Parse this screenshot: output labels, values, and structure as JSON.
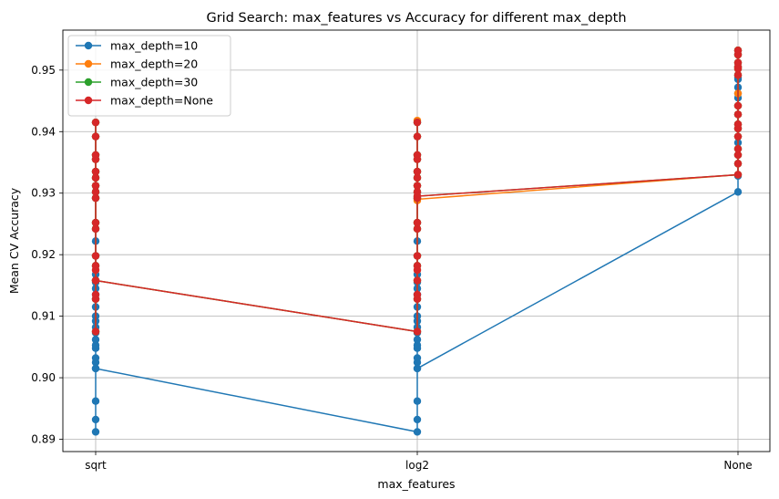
{
  "chart_data": {
    "type": "line",
    "title": "Grid Search: max_features vs Accuracy for different max_depth",
    "xlabel": "max_features",
    "ylabel": "Mean CV Accuracy",
    "categories": [
      "sqrt",
      "log2",
      "None"
    ],
    "ylim": [
      0.888,
      0.9565
    ],
    "yticks": [
      0.89,
      0.9,
      0.91,
      0.92,
      0.93,
      0.94,
      0.95
    ],
    "ytick_labels": [
      "0.89",
      "0.90",
      "0.91",
      "0.92",
      "0.93",
      "0.94",
      "0.95"
    ],
    "grid": true,
    "legend_position": "top-left",
    "series": [
      {
        "name": "max_depth=10",
        "color": "#1f77b4",
        "points": [
          {
            "cat": "sqrt",
            "values": [
              0.8912,
              0.8932,
              0.8962,
              0.9015,
              0.9025,
              0.9032,
              0.9048,
              0.9053,
              0.9062,
              0.9073,
              0.9082,
              0.9092,
              0.91,
              0.9115,
              0.9128,
              0.9135,
              0.9145,
              0.9155,
              0.9168,
              0.9182,
              0.9198,
              0.9222,
              0.9242,
              0.9252,
              0.9292,
              0.9302,
              0.9312,
              0.9325,
              0.9335,
              0.9355,
              0.9362,
              0.9392,
              0.9415,
              0.9015
            ]
          },
          {
            "cat": "log2",
            "values": [
              0.8912,
              0.8932,
              0.8962,
              0.9015,
              0.9025,
              0.9032,
              0.9048,
              0.9053,
              0.9062,
              0.9073,
              0.9082,
              0.9092,
              0.91,
              0.9115,
              0.9128,
              0.9135,
              0.9145,
              0.9155,
              0.9168,
              0.9182,
              0.9198,
              0.9222,
              0.9242,
              0.9252,
              0.9292,
              0.9302,
              0.9312,
              0.9325,
              0.9335,
              0.9355,
              0.9362,
              0.9392,
              0.9415,
              0.9135,
              0.9015
            ]
          },
          {
            "cat": "None",
            "values": [
              0.9302,
              0.9328,
              0.9348,
              0.9362,
              0.9372,
              0.9382,
              0.9392,
              0.9405,
              0.9412,
              0.9428,
              0.9442,
              0.9455,
              0.9462,
              0.9472,
              0.9485,
              0.9492,
              0.9505,
              0.9512,
              0.9525,
              0.9532,
              0.9488
            ]
          }
        ]
      },
      {
        "name": "max_depth=20",
        "color": "#ff7f0e",
        "points": [
          {
            "cat": "sqrt",
            "values": [
              0.9075,
              0.9128,
              0.9158,
              0.9175,
              0.9182,
              0.9198,
              0.9242,
              0.9252,
              0.9292,
              0.9302,
              0.9312,
              0.9325,
              0.9335,
              0.9355,
              0.9362,
              0.9392,
              0.9415,
              0.9158
            ]
          },
          {
            "cat": "log2",
            "values": [
              0.9075,
              0.9128,
              0.9158,
              0.9175,
              0.9182,
              0.9198,
              0.9242,
              0.9252,
              0.9288,
              0.9302,
              0.9312,
              0.9325,
              0.9335,
              0.9355,
              0.9362,
              0.9392,
              0.9418,
              0.929
            ]
          },
          {
            "cat": "None",
            "values": [
              0.933,
              0.9348,
              0.9362,
              0.9372,
              0.9392,
              0.9405,
              0.9412,
              0.9428,
              0.9442,
              0.9462,
              0.9492,
              0.9505,
              0.9512,
              0.9525,
              0.9532,
              0.9502
            ]
          }
        ]
      },
      {
        "name": "max_depth=30",
        "color": "#2ca02c",
        "points": [
          {
            "cat": "sqrt",
            "values": [
              0.9075,
              0.9128,
              0.9158,
              0.9182,
              0.9198,
              0.9242,
              0.9252,
              0.9292,
              0.9302,
              0.9312,
              0.9325,
              0.9335,
              0.9355,
              0.9362,
              0.9392,
              0.9415,
              0.9158
            ]
          },
          {
            "cat": "log2",
            "values": [
              0.9075,
              0.9128,
              0.9158,
              0.9182,
              0.9198,
              0.9242,
              0.9252,
              0.9292,
              0.9302,
              0.9312,
              0.9325,
              0.9335,
              0.9355,
              0.9362,
              0.9392,
              0.9415,
              0.9295
            ]
          },
          {
            "cat": "None",
            "values": [
              0.933,
              0.9348,
              0.9362,
              0.9372,
              0.9392,
              0.9405,
              0.9412,
              0.9428,
              0.9442,
              0.9492,
              0.9505,
              0.9512,
              0.9525,
              0.9532,
              0.9502
            ]
          }
        ]
      },
      {
        "name": "max_depth=None",
        "color": "#d62728",
        "points": [
          {
            "cat": "sqrt",
            "values": [
              0.9075,
              0.9128,
              0.9135,
              0.9158,
              0.9175,
              0.9182,
              0.9198,
              0.9242,
              0.9252,
              0.9292,
              0.9302,
              0.9312,
              0.9325,
              0.9335,
              0.9355,
              0.9362,
              0.9392,
              0.9415,
              0.9158
            ]
          },
          {
            "cat": "log2",
            "values": [
              0.9075,
              0.9128,
              0.9135,
              0.9158,
              0.9175,
              0.9182,
              0.9198,
              0.9242,
              0.9252,
              0.9292,
              0.9302,
              0.9312,
              0.9325,
              0.9335,
              0.9355,
              0.9362,
              0.9392,
              0.9415,
              0.9295
            ]
          },
          {
            "cat": "None",
            "values": [
              0.933,
              0.9348,
              0.9362,
              0.9372,
              0.9392,
              0.9405,
              0.9412,
              0.9428,
              0.9442,
              0.9492,
              0.9505,
              0.9512,
              0.9525,
              0.9532,
              0.9502
            ]
          }
        ]
      }
    ]
  }
}
